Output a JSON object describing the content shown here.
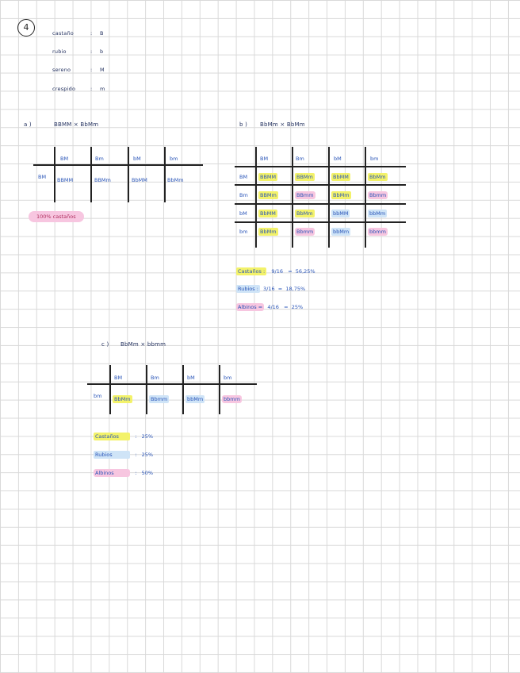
{
  "exercise_number": "4",
  "key": [
    {
      "trait": "castaño",
      "sep": ":",
      "allele": "B"
    },
    {
      "trait": "rubio",
      "sep": ":",
      "allele": "b"
    },
    {
      "trait": "sereno",
      "sep": ":",
      "allele": "M"
    },
    {
      "trait": "crespido",
      "sep": ":",
      "allele": "m"
    }
  ],
  "part_a": {
    "label": "a )",
    "cross": "BBMM  ×  BbMm",
    "top": [
      "BM",
      "Bm",
      "bM",
      "bm"
    ],
    "left": [
      "BM"
    ],
    "rows": [
      [
        "BBMM",
        "BBMm",
        "BbMM",
        "BbMm"
      ]
    ],
    "result": "100% castaños"
  },
  "part_b": {
    "label": "b )",
    "cross": "BbMm  ×  BbMm",
    "top": [
      "BM",
      "Bm",
      "bM",
      "bm"
    ],
    "left": [
      "BM",
      "Bm",
      "bM",
      "bm"
    ],
    "rows": [
      [
        "BBMM",
        "BBMm",
        "BbMM",
        "BbMm"
      ],
      [
        "BBMm",
        "BBmm",
        "BbMm",
        "Bbmm"
      ],
      [
        "BbMM",
        "BbMm",
        "bbMM",
        "bbMm"
      ],
      [
        "BbMm",
        "Bbmm",
        "bbMm",
        "bbmm"
      ]
    ],
    "results": [
      {
        "label": "Castaños :",
        "fraction": "9/16",
        "eq": "=",
        "percent": "56,25%"
      },
      {
        "label": "Rubios :",
        "fraction": "3/16",
        "eq": "=",
        "percent": "18,75%"
      },
      {
        "label": "Albinos =",
        "fraction": "4/16",
        "eq": "=",
        "percent": "25%"
      }
    ]
  },
  "part_c": {
    "label": "c )",
    "cross": "BbMm  ×  bbmm",
    "top": [
      "BM",
      "Bm",
      "bM",
      "bm"
    ],
    "left": [
      "bm"
    ],
    "rows": [
      [
        "BbMm",
        "Bbmm",
        "bbMm",
        "bbmm"
      ]
    ],
    "results": [
      {
        "label": "Castaños",
        "sep": ":",
        "percent": "25%"
      },
      {
        "label": "Rubios",
        "sep": ":",
        "percent": "25%"
      },
      {
        "label": "Albinos",
        "sep": ":",
        "percent": "50%"
      }
    ]
  },
  "colors": {
    "castano_highlight": "#f3f26a",
    "rubio_highlight": "#cfe4f7",
    "albino_highlight": "#f7c6e0",
    "ink": "#2a55b8"
  }
}
